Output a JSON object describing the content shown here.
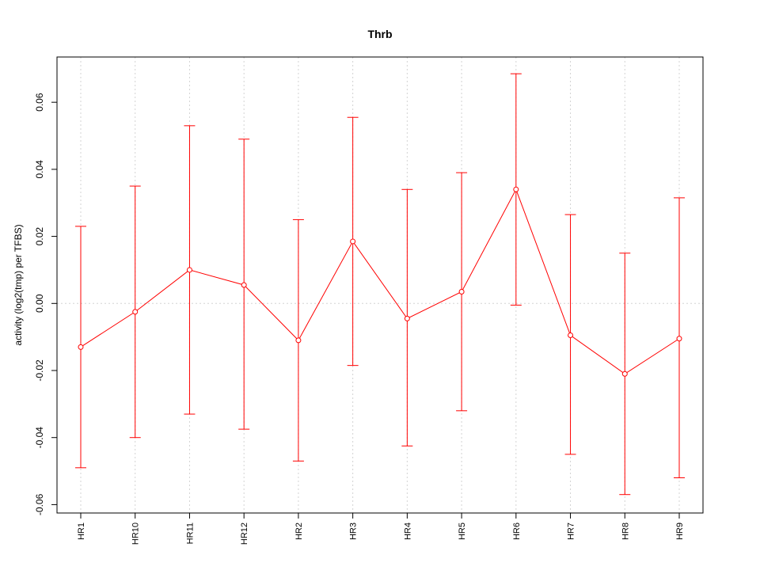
{
  "chart_data": {
    "type": "line",
    "title": "Thrb",
    "xlabel": "",
    "ylabel": "activity (log2(tmp) per TFBS)",
    "categories": [
      "HR1",
      "HR10",
      "HR11",
      "HR12",
      "HR2",
      "HR3",
      "HR4",
      "HR5",
      "HR6",
      "HR7",
      "HR8",
      "HR9"
    ],
    "series": [
      {
        "color": "#ff0000",
        "values": [
          -0.013,
          -0.0025,
          0.01,
          0.0055,
          -0.011,
          0.0185,
          -0.0045,
          0.0035,
          0.034,
          -0.0095,
          -0.021,
          -0.0105
        ],
        "lower": [
          -0.049,
          -0.04,
          -0.033,
          -0.0375,
          -0.047,
          -0.0185,
          -0.0425,
          -0.032,
          -0.0005,
          -0.045,
          -0.057,
          -0.052
        ],
        "upper": [
          0.023,
          0.035,
          0.053,
          0.049,
          0.025,
          0.0555,
          0.034,
          0.039,
          0.0685,
          0.0265,
          0.015,
          0.0315
        ]
      }
    ],
    "ylim": [
      -0.0625,
      0.0735
    ],
    "yticks": [
      "-0.06",
      "-0.04",
      "-0.02",
      "0.00",
      "0.02",
      "0.04",
      "0.06"
    ],
    "ytick_values": [
      -0.06,
      -0.04,
      -0.02,
      0.0,
      0.02,
      0.04,
      0.06
    ],
    "grid": true,
    "legend": "none"
  }
}
